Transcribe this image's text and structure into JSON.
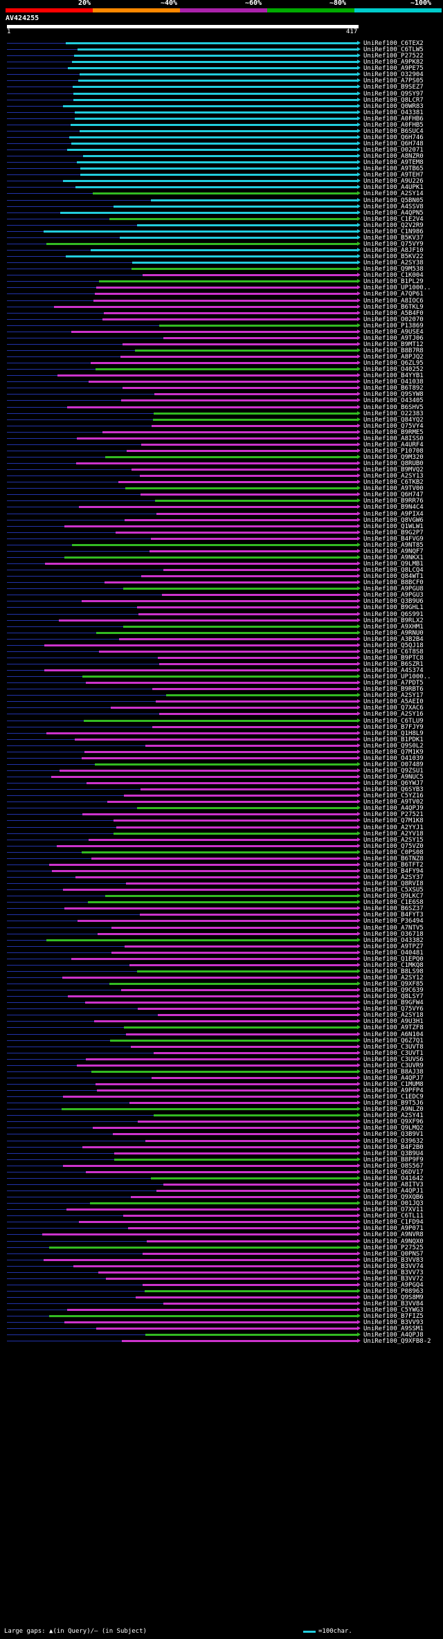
{
  "legend": {
    "labels": [
      "20%",
      "~40%",
      "~60%",
      "~80%",
      "~100%"
    ],
    "colors": [
      "#ff0000",
      "#ff8800",
      "#aa22aa",
      "#00aa00",
      "#00cccc"
    ]
  },
  "query": {
    "id": "AV424255",
    "start": "1",
    "end": "417"
  },
  "hit_colors": {
    "cyan": "#22ccdd",
    "green": "#33bb22",
    "magenta": "#cc33cc",
    "gap": "#2233aa"
  },
  "hits": [
    "UniRef100_C6TEX2",
    "UniRef100_C6TLW5",
    "UniRef100_P27522",
    "UniRef100_A9PK82",
    "UniRef100_A9PE75",
    "UniRef100_O32904",
    "UniRef100_A7PS05",
    "UniRef100_B9SEZ7",
    "UniRef100_Q9SY97",
    "UniRef100_Q8LCR7",
    "UniRef100_Q0WR83",
    "UniRef100_O43381",
    "UniRef100_A0FHB6",
    "UniRef100_A0FHB5",
    "UniRef100_B6SUC4",
    "UniRef100_Q6H746",
    "UniRef100_Q6H748",
    "UniRef100_O02071",
    "UniRef100_A8NZR0",
    "UniRef100_A9TEM8",
    "UniRef100_A9TB65",
    "UniRef100_A9TEH7",
    "UniRef100_A9U226",
    "UniRef100_A4UPK1",
    "UniRef100_A2SY14",
    "UniRef100_Q5BN05",
    "UniRef100_A4SSV8",
    "UniRef100_A4QPN5",
    "UniRef100_C1E2V4",
    "UniRef100_Q2V2R9",
    "UniRef100_C1N986",
    "UniRef100_B5KV37",
    "UniRef100_Q75VY9",
    "UniRef100_A8JF10",
    "UniRef100_B5KV22",
    "UniRef100_A2SY38",
    "UniRef100_Q9M538",
    "UniRef100_C1K004",
    "UniRef100_B1PL29",
    "UniRef100_UP1000..",
    "UniRef100_A7QP61",
    "UniRef100_A8IOC6",
    "UniRef100_B6TKL9",
    "UniRef100_A5B4F0",
    "UniRef100_O02070",
    "UniRef100_P13869",
    "UniRef100_A9USE4",
    "UniRef100_A9TJ06",
    "UniRef100_B9MT12",
    "UniRef100_B8B7R8",
    "UniRef100_A8PJQ2",
    "UniRef100_Q6ZL95",
    "UniRef100_O40252",
    "UniRef100_B4YYB1",
    "UniRef100_O41038",
    "UniRef100_B6T892",
    "UniRef100_Q9SYW8",
    "UniRef100_O43405",
    "UniRef100_B6SHV5",
    "UniRef100_O22383",
    "UniRef100_Q84YQ2",
    "UniRef100_Q75VY4",
    "UniRef100_B9RME5",
    "UniRef100_A8ISS0",
    "UniRef100_A4URF4",
    "UniRef100_P10708",
    "UniRef100_Q9M320",
    "UniRef100_Q8RUB0",
    "UniRef100_B9MVQ2",
    "UniRef100_A2SY13",
    "UniRef100_C6TKB2",
    "UniRef100_A9TV00",
    "UniRef100_Q6H747",
    "UniRef100_B9RR76",
    "UniRef100_B9N4C4",
    "UniRef100_A9PIX4",
    "UniRef100_Q8VGW6",
    "UniRef100_Q1WLW1",
    "UniRef100_B9G2P7",
    "UniRef100_B4FVG9",
    "UniRef100_A9NT85",
    "UniRef100_A9NQF7",
    "UniRef100_A9NKX1",
    "UniRef100_Q9LMB1",
    "UniRef100_Q8LCQ4",
    "UniRef100_Q84WT1",
    "UniRef100_B8BCF0",
    "UniRef100_A9PGU8",
    "UniRef100_A9PGU3",
    "UniRef100_Q3B9U6",
    "UniRef100_B9GHL1",
    "UniRef100_Q6S991",
    "UniRef100_B9RLX2",
    "UniRef100_A9XHM1",
    "UniRef100_A9RNU0",
    "UniRef100_A3B2B4",
    "UniRef100_Q5QJ18",
    "UniRef100_C6T8S8",
    "UniRef100_B9PTC8",
    "UniRef100_B6SZR1",
    "UniRef100_A4S374",
    "UniRef100_UP1000..",
    "UniRef100_A7PDT5",
    "UniRef100_B9RBT6",
    "UniRef100_A2SY17",
    "UniRef100_A5AEI0",
    "UniRef100_Q7XAC6",
    "UniRef100_A2SY16",
    "UniRef100_C6TLU9",
    "UniRef100_B7FJY9",
    "UniRef100_Q1H8L9",
    "UniRef100_B1PDK1",
    "UniRef100_Q9S0L2",
    "UniRef100_Q7M1K9",
    "UniRef100_O41039",
    "UniRef100_O07489",
    "UniRef100_Q9ZSU1",
    "UniRef100_A9NUC5",
    "UniRef100_Q6YWJ7",
    "UniRef100_Q6SYB3",
    "UniRef100_C5YZ16",
    "UniRef100_A9TV02",
    "UniRef100_A4QPJ9",
    "UniRef100_P27521",
    "UniRef100_Q7M1K8",
    "UniRef100_A2YYJ1",
    "UniRef100_A2YV18",
    "UniRef100_A2SY15",
    "UniRef100_Q75VZ0",
    "UniRef100_C0PS08",
    "UniRef100_B6TNZ8",
    "UniRef100_B6TFT2",
    "UniRef100_B4FY94",
    "UniRef100_A2SY37",
    "UniRef100_Q8RVI8",
    "UniRef100_C5XSU5",
    "UniRef100_Q9LKC7",
    "UniRef100_C1E6S8",
    "UniRef100_B6SZ37",
    "UniRef100_B4FYT3",
    "UniRef100_P36494",
    "UniRef100_A7NTV5",
    "UniRef100_O36718",
    "UniRef100_O43382",
    "UniRef100_A9TPZ7",
    "UniRef100_O40481",
    "UniRef100_Q1EPQ0",
    "UniRef100_C1MKQ8",
    "UniRef100_B8LS98",
    "UniRef100_A2SY12",
    "UniRef100_Q9XF85",
    "UniRef100_Q9C639",
    "UniRef100_Q8LSY7",
    "UniRef100_B9GFW4",
    "UniRef100_Q75VY6",
    "UniRef100_A2SY18",
    "UniRef100_A9U3H1",
    "UniRef100_A9TZF8",
    "UniRef100_A6N104",
    "UniRef100_Q6Z7Q1",
    "UniRef100_C3UVT8",
    "UniRef100_C3UVT1",
    "UniRef100_C3UVS6",
    "UniRef100_C3UVR9",
    "UniRef100_B8AJ38",
    "UniRef100_A4QPJ7",
    "UniRef100_C1MUM8",
    "UniRef100_A9PFP4",
    "UniRef100_C1EDC9",
    "UniRef100_B9T5J6",
    "UniRef100_A9NLZ0",
    "UniRef100_A2SY41",
    "UniRef100_Q9XF96",
    "UniRef100_Q9LMQ2",
    "UniRef100_Q3B9V1",
    "UniRef100_O39632",
    "UniRef100_B4F2B0",
    "UniRef100_Q3B9U4",
    "UniRef100_B8P9F9",
    "UniRef100_O8S567",
    "UniRef100_Q6DV17",
    "UniRef100_O41642",
    "UniRef100_A8ITV3",
    "UniRef100_A4QPJ1",
    "UniRef100_Q9XQB6",
    "UniRef100_O01JQ3",
    "UniRef100_O7XV11",
    "UniRef100_C6TL11",
    "UniRef100_C1FD94",
    "UniRef100_A9P071",
    "UniRef100_A9NVR8",
    "UniRef100_A9NQX0",
    "UniRef100_P27525",
    "UniRef100_Q0PNS7",
    "UniRef100_B3VV83",
    "UniRef100_B3VV74",
    "UniRef100_B3VV73",
    "UniRef100_B3VV72",
    "UniRef100_A9PGQ4",
    "UniRef100_P08963",
    "UniRef100_Q9S8M9",
    "UniRef100_B3VV84",
    "UniRef100_C5YWG3",
    "UniRef100_B7FIZ5",
    "UniRef100_B3VV93",
    "UniRef100_A9SSM1",
    "UniRef100_A4QPJ8",
    "UniRef100_Q9XFB8-2"
  ],
  "footer": {
    "gaps_text": "Large gaps: ▲(in Query)/— (in Subject)",
    "scale_text": "=100char."
  }
}
